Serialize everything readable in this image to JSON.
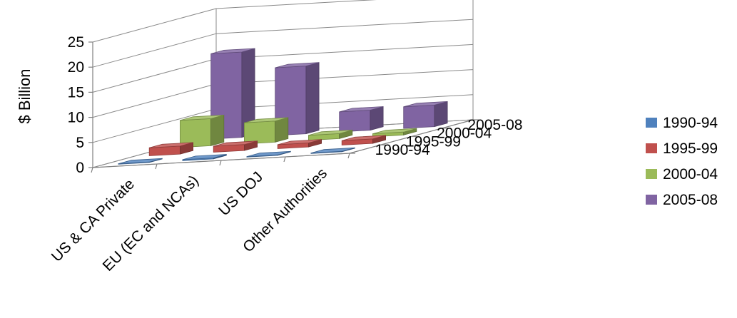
{
  "chart_data": {
    "type": "bar",
    "subtype": "3d-column",
    "ylabel": "$ Billion",
    "ylim": [
      0,
      25
    ],
    "yticks": [
      0,
      5,
      10,
      15,
      20,
      25
    ],
    "grid": true,
    "legend_position": "right",
    "categories": [
      "US & CA Private",
      "EU (EC and NCAs)",
      "US DOJ",
      "Other Authorities"
    ],
    "depth_labels": [
      "1990-94",
      "1995-99",
      "2000-04",
      "2005-08"
    ],
    "series": [
      {
        "name": "1990-94",
        "color": "#4f81bd",
        "values": [
          0.1,
          0.2,
          0.1,
          0.1
        ]
      },
      {
        "name": "1995-99",
        "color": "#c0504d",
        "values": [
          1.6,
          1.2,
          0.8,
          0.9
        ]
      },
      {
        "name": "2000-04",
        "color": "#9bbb59",
        "values": [
          5.4,
          4.2,
          1.0,
          0.6
        ]
      },
      {
        "name": "2005-08",
        "color": "#8064a2",
        "values": [
          17.0,
          13.5,
          4.0,
          4.3
        ]
      }
    ]
  }
}
